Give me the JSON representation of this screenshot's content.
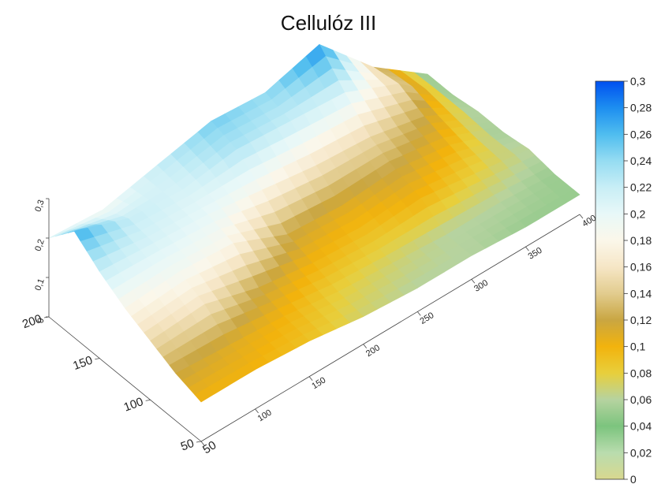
{
  "chart_data": {
    "type": "surface3d",
    "title": "Cellulóz III",
    "xlabel": "",
    "ylabel": "",
    "zlabel": "",
    "x_ticks": [
      "50",
      "100",
      "150",
      "200",
      "250",
      "300",
      "350",
      "400"
    ],
    "y_ticks": [
      "50",
      "100",
      "150",
      "200"
    ],
    "z_ticks": [
      "0",
      "0,1",
      "0,2",
      "0,3"
    ],
    "xlim": [
      50,
      400
    ],
    "ylim": [
      50,
      200
    ],
    "zlim": [
      0,
      0.3
    ],
    "colorbar": {
      "min": 0,
      "max": 0.3,
      "labels": [
        "0",
        "0,02",
        "0,04",
        "0,06",
        "0,08",
        "0,1",
        "0,12",
        "0,14",
        "0,16",
        "0,18",
        "0,2",
        "0,22",
        "0,24",
        "0,26",
        "0,28",
        "0,3"
      ],
      "stops": [
        {
          "value": 0.0,
          "color": "#d8d88f"
        },
        {
          "value": 0.02,
          "color": "#b9dcae"
        },
        {
          "value": 0.04,
          "color": "#7cc47e"
        },
        {
          "value": 0.06,
          "color": "#b6d3a0"
        },
        {
          "value": 0.08,
          "color": "#e8cf3c"
        },
        {
          "value": 0.1,
          "color": "#f2b30d"
        },
        {
          "value": 0.12,
          "color": "#c9a642"
        },
        {
          "value": 0.14,
          "color": "#e2cc8e"
        },
        {
          "value": 0.16,
          "color": "#f6e6c6"
        },
        {
          "value": 0.18,
          "color": "#fbf7ea"
        },
        {
          "value": 0.2,
          "color": "#e8f8f8"
        },
        {
          "value": 0.22,
          "color": "#c8eef6"
        },
        {
          "value": 0.24,
          "color": "#95dcf2"
        },
        {
          "value": 0.26,
          "color": "#4fbdef"
        },
        {
          "value": 0.28,
          "color": "#1d8ef0"
        },
        {
          "value": 0.3,
          "color": "#0050f0"
        }
      ]
    },
    "z_grid": [
      [
        0.1,
        0.1,
        0.09,
        0.07,
        0.06,
        0.06,
        0.05,
        0.05
      ],
      [
        0.12,
        0.11,
        0.1,
        0.08,
        0.07,
        0.06,
        0.06,
        0.05
      ],
      [
        0.15,
        0.16,
        0.12,
        0.1,
        0.09,
        0.1,
        0.08,
        0.06
      ],
      [
        0.18,
        0.19,
        0.18,
        0.12,
        0.11,
        0.12,
        0.1,
        0.05
      ],
      [
        0.22,
        0.21,
        0.2,
        0.18,
        0.16,
        0.15,
        0.12,
        0.05
      ],
      [
        0.27,
        0.22,
        0.21,
        0.23,
        0.22,
        0.21,
        0.15,
        0.04
      ],
      [
        0.2,
        0.19,
        0.22,
        0.25,
        0.24,
        0.28,
        0.14,
        0.04
      ]
    ],
    "grid_x": [
      50,
      100,
      150,
      200,
      250,
      300,
      350,
      400
    ],
    "grid_y": [
      50,
      75,
      100,
      125,
      150,
      175,
      200
    ]
  }
}
